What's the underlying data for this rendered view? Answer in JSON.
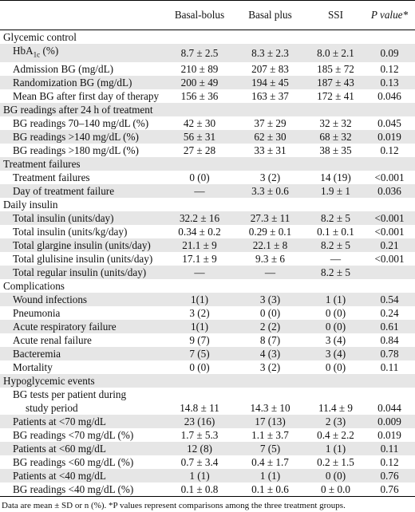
{
  "headers": [
    "",
    "Basal-bolus",
    "Basal plus",
    "SSI",
    "P value*"
  ],
  "sections": [
    {
      "title": "Glycemic control",
      "rows": [
        {
          "label": "HbA1c (%)",
          "basal_bolus": "8.7 ± 2.5",
          "basal_plus": "8.3 ± 2.3",
          "ssi": "8.0 ± 2.1",
          "p": "0.09"
        },
        {
          "label": "Admission BG (mg/dL)",
          "basal_bolus": "210 ± 89",
          "basal_plus": "207 ± 83",
          "ssi": "185 ± 72",
          "p": "0.12"
        },
        {
          "label": "Randomization BG (mg/dL)",
          "basal_bolus": "200 ± 49",
          "basal_plus": "194 ± 45",
          "ssi": "187 ± 43",
          "p": "0.13"
        },
        {
          "label": "Mean BG after first day of therapy",
          "basal_bolus": "156 ± 36",
          "basal_plus": "163 ± 37",
          "ssi": "172 ± 41",
          "p": "0.046"
        }
      ]
    },
    {
      "title": "BG readings after 24 h of treatment",
      "rows": [
        {
          "label": "BG readings 70–140 mg/dL (%)",
          "basal_bolus": "42 ± 30",
          "basal_plus": "37 ± 29",
          "ssi": "32 ± 32",
          "p": "0.045"
        },
        {
          "label": "BG readings >140 mg/dL (%)",
          "basal_bolus": "56 ± 31",
          "basal_plus": "62 ± 30",
          "ssi": "68 ± 32",
          "p": "0.019"
        },
        {
          "label": "BG readings >180 mg/dL (%)",
          "basal_bolus": "27 ± 28",
          "basal_plus": "33 ± 31",
          "ssi": "38 ± 35",
          "p": "0.12"
        }
      ]
    },
    {
      "title": "Treatment failures",
      "rows": [
        {
          "label": "Treatment failures",
          "basal_bolus": "0 (0)",
          "basal_plus": "3 (2)",
          "ssi": "14 (19)",
          "p": "<0.001"
        },
        {
          "label": "Day of treatment failure",
          "basal_bolus": "—",
          "basal_plus": "3.3 ± 0.6",
          "ssi": "1.9 ± 1",
          "p": "0.036"
        }
      ]
    },
    {
      "title": "Daily insulin",
      "rows": [
        {
          "label": "Total insulin (units/day)",
          "basal_bolus": "32.2 ± 16",
          "basal_plus": "27.3 ± 11",
          "ssi": "8.2 ± 5",
          "p": "<0.001"
        },
        {
          "label": "Total insulin (units/kg/day)",
          "basal_bolus": "0.34 ± 0.2",
          "basal_plus": "0.29 ± 0.1",
          "ssi": "0.1 ± 0.1",
          "p": "<0.001"
        },
        {
          "label": "Total glargine insulin (units/day)",
          "basal_bolus": "21.1 ± 9",
          "basal_plus": "22.1 ± 8",
          "ssi": "8.2 ± 5",
          "p": "0.21"
        },
        {
          "label": "Total glulisine insulin (units/day)",
          "basal_bolus": "17.1 ± 9",
          "basal_plus": "9.3 ± 6",
          "ssi": "—",
          "p": "<0.001"
        },
        {
          "label": "Total regular insulin (units/day)",
          "basal_bolus": "—",
          "basal_plus": "—",
          "ssi": "8.2 ± 5",
          "p": ""
        }
      ]
    },
    {
      "title": "Complications",
      "rows": [
        {
          "label": "Wound infections",
          "basal_bolus": "1(1)",
          "basal_plus": "3 (3)",
          "ssi": "1 (1)",
          "p": "0.54"
        },
        {
          "label": "Pneumonia",
          "basal_bolus": "3 (2)",
          "basal_plus": "0 (0)",
          "ssi": "0 (0)",
          "p": "0.24"
        },
        {
          "label": "Acute respiratory failure",
          "basal_bolus": "1(1)",
          "basal_plus": "2 (2)",
          "ssi": "0 (0)",
          "p": "0.61"
        },
        {
          "label": "Acute renal failure",
          "basal_bolus": "9 (7)",
          "basal_plus": "8 (7)",
          "ssi": "3 (4)",
          "p": "0.84"
        },
        {
          "label": "Bacteremia",
          "basal_bolus": "7 (5)",
          "basal_plus": "4 (3)",
          "ssi": "3 (4)",
          "p": "0.78"
        },
        {
          "label": "Mortality",
          "basal_bolus": "0 (0)",
          "basal_plus": "3 (2)",
          "ssi": "0 (0)",
          "p": "0.11"
        }
      ]
    },
    {
      "title": "Hypoglycemic events",
      "rows": [
        {
          "label": "BG tests per patient during",
          "label2": "study period",
          "basal_bolus": "14.8 ± 11",
          "basal_plus": "14.3 ± 10",
          "ssi": "11.4 ± 9",
          "p": "0.044"
        },
        {
          "label": "Patients at <70 mg/dL",
          "basal_bolus": "23 (16)",
          "basal_plus": "17 (13)",
          "ssi": "2 (3)",
          "p": "0.009"
        },
        {
          "label": "BG readings <70 mg/dL (%)",
          "basal_bolus": "1.7 ± 5.3",
          "basal_plus": "1.1 ± 3.7",
          "ssi": "0.4 ± 2.2",
          "p": "0.019"
        },
        {
          "label": "Patients at <60 mg/dL",
          "basal_bolus": "12 (8)",
          "basal_plus": "7 (5)",
          "ssi": "1 (1)",
          "p": "0.11"
        },
        {
          "label": "BG readings <60 mg/dL (%)",
          "basal_bolus": "0.7 ± 3.4",
          "basal_plus": "0.4 ± 1.7",
          "ssi": "0.2 ± 1.5",
          "p": "0.12"
        },
        {
          "label": "Patients at <40 mg/dL",
          "basal_bolus": "1 (1)",
          "basal_plus": "1 (1)",
          "ssi": "0 (0)",
          "p": "0.76"
        },
        {
          "label": "BG readings <40 mg/dL (%)",
          "basal_bolus": "0.1 ± 0.8",
          "basal_plus": "0.1 ± 0.6",
          "ssi": "0 ± 0.0",
          "p": "0.76"
        }
      ]
    }
  ],
  "footnote": "Data are mean ± SD or n (%). *P values represent comparisons among the three treatment groups.",
  "shade_color": "#e6e6e6"
}
